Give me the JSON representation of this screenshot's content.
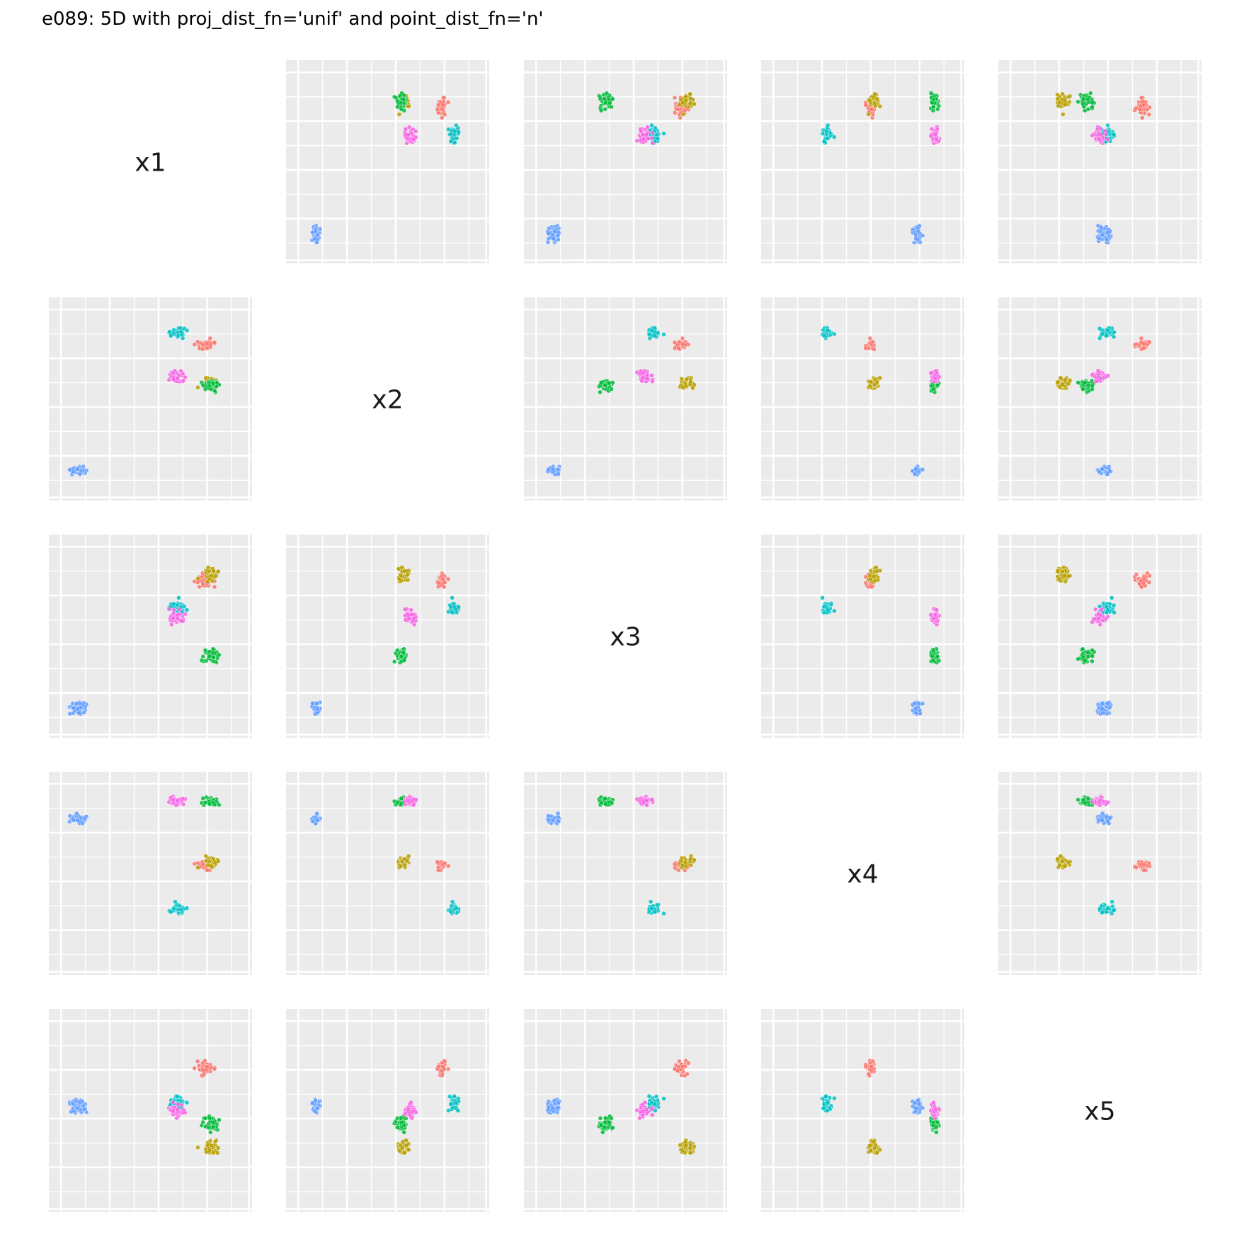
{
  "chart_data": {
    "type": "scatter",
    "subtype": "scatterplot-matrix",
    "title": "e089: 5D with proj_dist_fn='unif' and point_dist_fn='n'",
    "variables": [
      "x1",
      "x2",
      "x3",
      "x4",
      "x5"
    ],
    "axis_tick_labels_shown": false,
    "grid": true,
    "panel_background": "#EBEBEB",
    "grid_color": "#FFFFFF",
    "points_per_cluster": 45,
    "cluster_colors": [
      "#F8766D",
      "#B79F00",
      "#00BA38",
      "#00BFC4",
      "#619CFF",
      "#F564E3"
    ],
    "cluster_centers": [
      [
        0.7,
        0.7,
        0.72,
        0.1,
        0.55
      ],
      [
        0.78,
        0.2,
        0.78,
        0.14,
        -0.48
      ],
      [
        0.78,
        0.18,
        -0.25,
        0.92,
        -0.18
      ],
      [
        0.35,
        0.86,
        0.35,
        -0.46,
        0.1
      ],
      [
        -0.92,
        -0.92,
        -0.92,
        0.7,
        0.05
      ],
      [
        0.33,
        0.28,
        0.25,
        0.93,
        0.0
      ]
    ],
    "cluster_spread": [
      [
        0.1,
        0.06,
        0.09,
        0.05,
        0.09
      ],
      [
        0.1,
        0.06,
        0.09,
        0.05,
        0.09
      ],
      [
        0.1,
        0.06,
        0.09,
        0.05,
        0.09
      ],
      [
        0.1,
        0.06,
        0.09,
        0.05,
        0.09
      ],
      [
        0.1,
        0.06,
        0.09,
        0.05,
        0.09
      ],
      [
        0.1,
        0.06,
        0.09,
        0.05,
        0.09
      ]
    ],
    "xlim": [
      -1.15,
      1.15
    ],
    "ylim": [
      -1.15,
      1.15
    ]
  }
}
